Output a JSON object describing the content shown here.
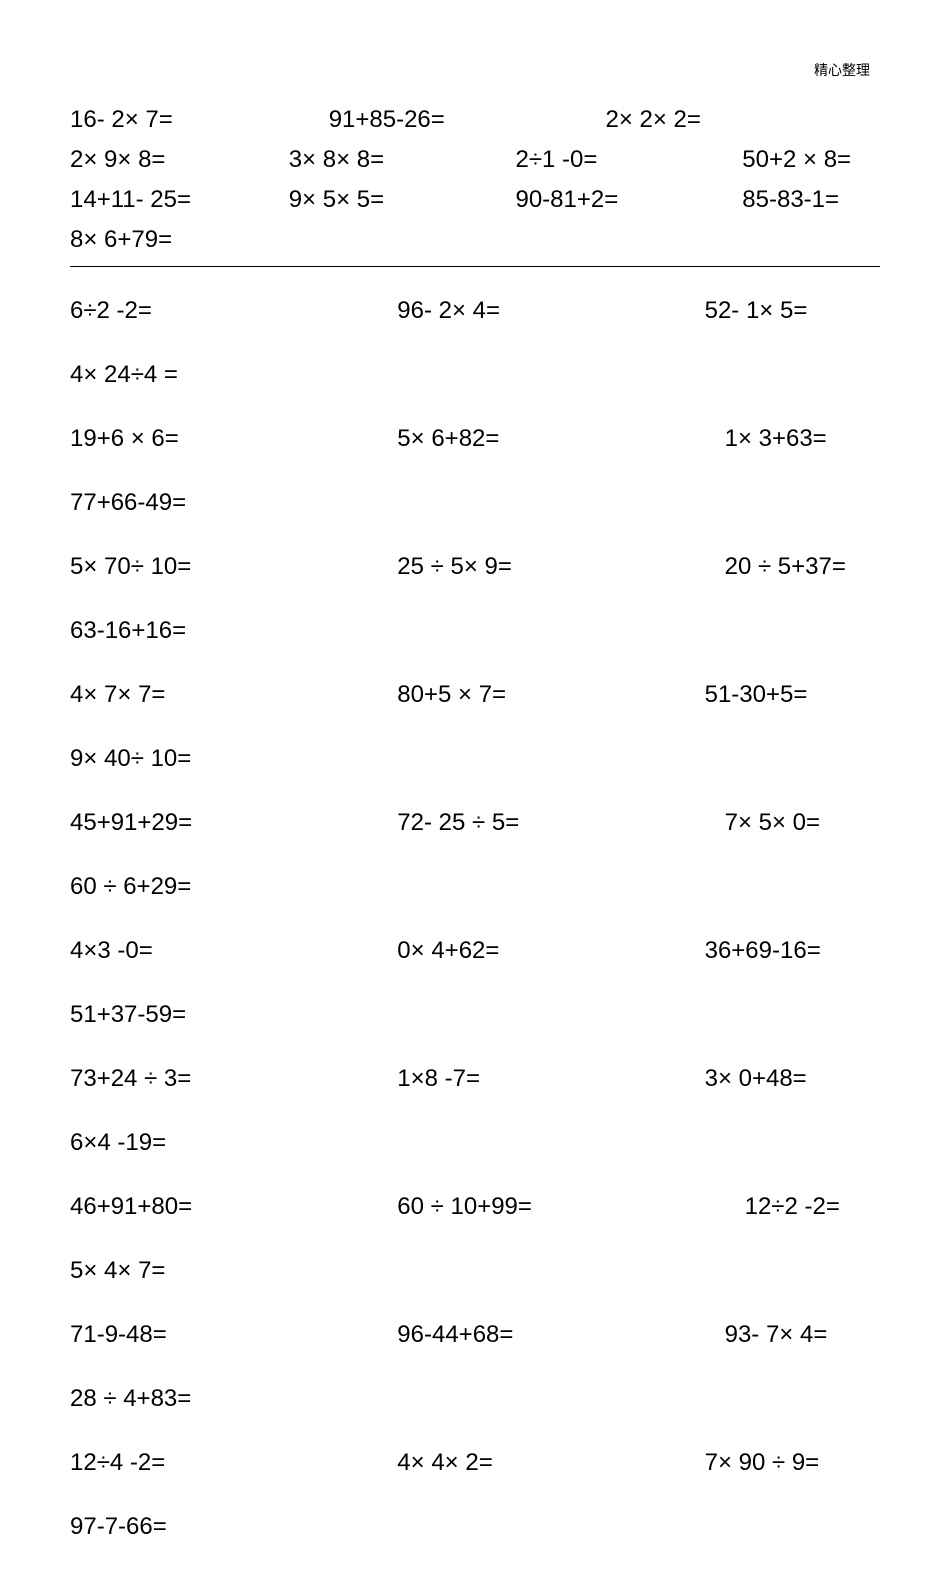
{
  "header": "精心整理",
  "top": {
    "r1": {
      "c1": "16- 2× 7=",
      "c2": "91+85-26=",
      "c3": "2× 2× 2=",
      "c4": ""
    },
    "r2": {
      "c1": "2× 9× 8=",
      "c2": "3× 8× 8=",
      "c3": "2÷1 -0=",
      "c4": "50+2 × 8="
    },
    "r3": {
      "c1": "14+11-  25=",
      "c2": "9× 5× 5=",
      "c3": "90-81+2=",
      "c4": "85-83-1="
    },
    "r4": {
      "c1": "8× 6+79=",
      "c2": "",
      "c3": "",
      "c4": ""
    }
  },
  "lower": [
    {
      "c1": "6÷2 -2=",
      "c2": "96- 2× 4=",
      "c3": "52- 1× 5="
    },
    {
      "c1": "4× 24÷4 =",
      "c2": "",
      "c3": ""
    },
    {
      "c1": "19+6 × 6=",
      "c2": "5× 6+82=",
      "c3": "1× 3+63="
    },
    {
      "c1": "77+66-49=",
      "c2": "",
      "c3": ""
    },
    {
      "c1": "5× 70÷ 10=",
      "c2": "25 ÷ 5× 9=",
      "c3": "20 ÷ 5+37="
    },
    {
      "c1": "63-16+16=",
      "c2": "",
      "c3": ""
    },
    {
      "c1": "4× 7× 7=",
      "c2": "80+5 × 7=",
      "c3": "51-30+5="
    },
    {
      "c1": "9× 40÷ 10=",
      "c2": "",
      "c3": ""
    },
    {
      "c1": "45+91+29=",
      "c2": "72- 25 ÷ 5=",
      "c3": "7× 5× 0="
    },
    {
      "c1": "60 ÷ 6+29=",
      "c2": "",
      "c3": ""
    },
    {
      "c1": "4×3 -0=",
      "c2": "0× 4+62=",
      "c3": "36+69-16="
    },
    {
      "c1": "51+37-59=",
      "c2": "",
      "c3": ""
    },
    {
      "c1": "73+24 ÷ 3=",
      "c2": "1×8 -7=",
      "c3": "3× 0+48="
    },
    {
      "c1": "6×4 -19=",
      "c2": "",
      "c3": ""
    },
    {
      "c1": "46+91+80=",
      "c2": "60 ÷ 10+99=",
      "c3": "12÷2 -2="
    },
    {
      "c1": "5× 4× 7=",
      "c2": "",
      "c3": ""
    },
    {
      "c1": "71-9-48=",
      "c2": "96-44+68=",
      "c3": "93- 7× 4="
    },
    {
      "c1": "28 ÷ 4+83=",
      "c2": "",
      "c3": ""
    },
    {
      "c1": "12÷4 -2=",
      "c2": "4× 4× 2=",
      "c3": "7× 90 ÷ 9="
    },
    {
      "c1": "97-7-66=",
      "c2": "",
      "c3": ""
    }
  ],
  "indent": {
    "lower_c2": [
      60,
      0,
      60,
      0,
      60,
      0,
      60,
      0,
      60,
      0,
      60,
      0,
      60,
      0,
      60,
      0,
      60,
      0,
      60,
      0
    ],
    "lower_c3": [
      40,
      0,
      60,
      0,
      60,
      0,
      40,
      0,
      60,
      0,
      40,
      0,
      40,
      0,
      80,
      0,
      60,
      0,
      40,
      0
    ]
  }
}
